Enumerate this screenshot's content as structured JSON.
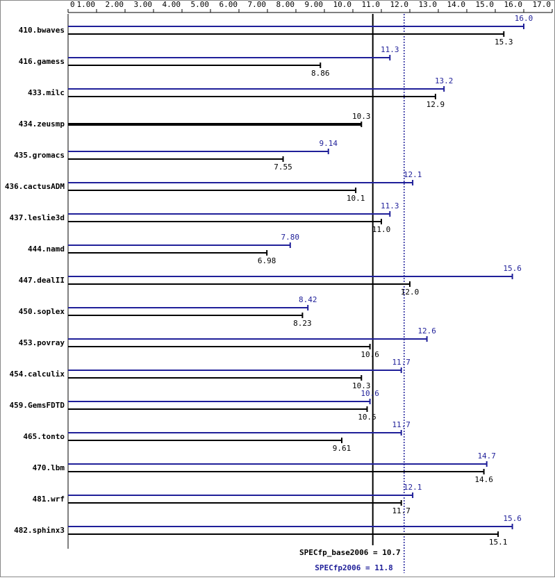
{
  "chart_data": {
    "type": "bar",
    "categories": [
      "410.bwaves",
      "416.gamess",
      "433.milc",
      "434.zeusmp",
      "435.gromacs",
      "436.cactusADM",
      "437.leslie3d",
      "444.namd",
      "447.dealII",
      "450.soplex",
      "453.povray",
      "454.calculix",
      "459.GemsFDTD",
      "465.tonto",
      "470.lbm",
      "481.wrf",
      "482.sphinx3"
    ],
    "series": [
      {
        "color": "#1f1f99",
        "values": [
          16.0,
          11.3,
          13.2,
          null,
          9.14,
          12.1,
          11.3,
          7.8,
          15.6,
          8.42,
          12.6,
          11.7,
          10.6,
          11.7,
          14.7,
          12.1,
          15.6
        ],
        "value_labels": [
          "16.0",
          "11.3",
          "13.2",
          null,
          "9.14",
          "12.1",
          "11.3",
          "7.80",
          "15.6",
          "8.42",
          "12.6",
          "11.7",
          "10.6",
          "11.7",
          "14.7",
          "12.1",
          "15.6"
        ]
      },
      {
        "color": "#000000",
        "values": [
          15.3,
          8.86,
          12.9,
          10.3,
          7.55,
          10.1,
          11.0,
          6.98,
          12.0,
          8.23,
          10.6,
          10.3,
          10.5,
          9.61,
          14.6,
          11.7,
          15.1
        ],
        "value_labels": [
          "15.3",
          "8.86",
          "12.9",
          "10.3",
          "7.55",
          "10.1",
          "11.0",
          "6.98",
          "12.0",
          "8.23",
          "10.6",
          "10.3",
          "10.5",
          "9.61",
          "14.6",
          "11.7",
          "15.1"
        ]
      }
    ],
    "xlim": [
      0,
      17
    ],
    "xticks": [
      0,
      {
        "value": 1,
        "label": "1.00"
      },
      {
        "value": 2,
        "label": "2.00"
      },
      {
        "value": 3,
        "label": "3.00"
      },
      {
        "value": 4,
        "label": "4.00"
      },
      {
        "value": 5,
        "label": "5.00"
      },
      {
        "value": 6,
        "label": "6.00"
      },
      {
        "value": 7,
        "label": "7.00"
      },
      {
        "value": 8,
        "label": "8.00"
      },
      {
        "value": 9,
        "label": "9.00"
      },
      {
        "value": 10,
        "label": "10.0"
      },
      {
        "value": 11,
        "label": "11.0"
      },
      {
        "value": 12,
        "label": "12.0"
      },
      {
        "value": 13,
        "label": "13.0"
      },
      {
        "value": 14,
        "label": "14.0"
      },
      {
        "value": 15,
        "label": "15.0"
      },
      {
        "value": 16,
        "label": "16.0"
      },
      {
        "value": 17,
        "label": "17.0"
      }
    ],
    "reference_lines": [
      {
        "label": "SPECfp_base2006 = 10.7",
        "value": 10.7,
        "color": "#000000"
      },
      {
        "label": "SPECfp2006 = 11.8",
        "value": 11.8,
        "color": "#1f1f99"
      }
    ]
  }
}
